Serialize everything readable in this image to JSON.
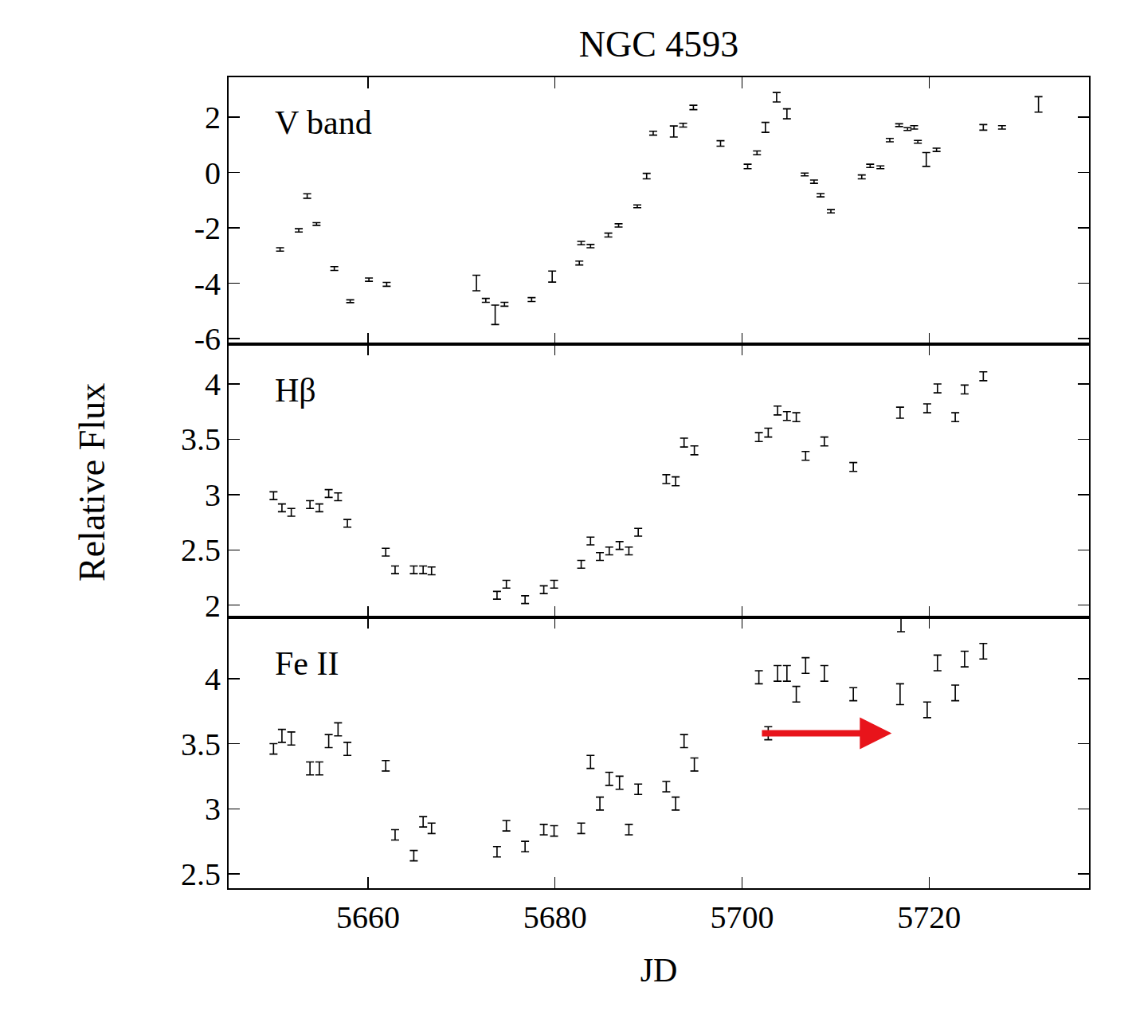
{
  "figure": {
    "title": "NGC 4593",
    "x_label": "JD",
    "y_label": "Relative Flux"
  },
  "chart_data": [
    {
      "type": "scatter",
      "label": "V band",
      "tick_labels": "y",
      "grid": false,
      "xlim": [
        5645.1,
        5737.1
      ],
      "xticks": [
        5660,
        5680,
        5700,
        5720
      ],
      "ylim": [
        -6.2,
        3.44
      ],
      "yticks": [
        -6,
        -4,
        -2,
        0,
        2
      ],
      "series": [
        {
          "name": "V band",
          "color": "#000000",
          "marker": "none",
          "x": [
            5650.6,
            5652.6,
            5653.5,
            5654.5,
            5656.4,
            5658.1,
            5660.1,
            5662.0,
            5671.6,
            5672.6,
            5673.6,
            5674.6,
            5677.5,
            5679.7,
            5682.6,
            5682.8,
            5683.8,
            5685.7,
            5686.8,
            5688.8,
            5689.8,
            5690.5,
            5692.7,
            5693.7,
            5694.8,
            5697.7,
            5700.6,
            5701.6,
            5702.5,
            5703.7,
            5704.8,
            5706.7,
            5707.7,
            5708.4,
            5709.5,
            5712.8,
            5713.7,
            5714.8,
            5715.8,
            5716.8,
            5717.7,
            5718.4,
            5718.8,
            5719.7,
            5720.8,
            5725.8,
            5727.8,
            5731.7
          ],
          "values": [
            -2.78,
            -2.09,
            -0.85,
            -1.86,
            -3.47,
            -4.65,
            -3.87,
            -4.04,
            -3.99,
            -4.62,
            -5.14,
            -4.76,
            -4.59,
            -3.76,
            -3.27,
            -2.55,
            -2.66,
            -2.26,
            -1.91,
            -1.22,
            -0.13,
            1.42,
            1.48,
            1.71,
            2.35,
            1.05,
            0.22,
            0.71,
            1.63,
            2.72,
            2.12,
            -0.07,
            -0.33,
            -0.82,
            -1.4,
            -0.16,
            0.24,
            0.19,
            1.17,
            1.71,
            1.57,
            1.63,
            1.11,
            0.47,
            0.82,
            1.63,
            1.63,
            2.46
          ],
          "errors": [
            0.06,
            0.06,
            0.08,
            0.05,
            0.07,
            0.05,
            0.06,
            0.07,
            0.28,
            0.07,
            0.35,
            0.07,
            0.07,
            0.2,
            0.07,
            0.06,
            0.06,
            0.07,
            0.06,
            0.05,
            0.1,
            0.07,
            0.2,
            0.07,
            0.08,
            0.1,
            0.08,
            0.07,
            0.18,
            0.17,
            0.18,
            0.05,
            0.06,
            0.06,
            0.06,
            0.07,
            0.06,
            0.05,
            0.06,
            0.05,
            0.05,
            0.06,
            0.05,
            0.25,
            0.06,
            0.1,
            0.06,
            0.28
          ]
        }
      ]
    },
    {
      "type": "scatter",
      "label": "Hβ",
      "tick_labels": "y",
      "grid": false,
      "xlim": [
        5645.1,
        5737.1
      ],
      "xticks": [
        5660,
        5680,
        5700,
        5720
      ],
      "ylim": [
        1.89,
        4.36
      ],
      "yticks": [
        2,
        2.5,
        3,
        3.5,
        4
      ],
      "series": [
        {
          "name": "Hβ",
          "color": "#000000",
          "marker": "none",
          "x": [
            5649.9,
            5650.8,
            5651.8,
            5653.8,
            5654.8,
            5655.8,
            5656.8,
            5657.8,
            5661.9,
            5662.9,
            5664.9,
            5665.9,
            5666.8,
            5673.8,
            5674.8,
            5676.8,
            5678.8,
            5679.9,
            5682.8,
            5683.8,
            5684.8,
            5685.8,
            5686.9,
            5687.9,
            5688.9,
            5691.9,
            5692.9,
            5693.8,
            5694.9,
            5701.8,
            5702.8,
            5703.8,
            5704.8,
            5705.8,
            5706.8,
            5708.8,
            5711.9,
            5716.9,
            5719.8,
            5720.9,
            5722.8,
            5723.8,
            5725.8
          ],
          "values": [
            2.99,
            2.88,
            2.84,
            2.91,
            2.88,
            3.01,
            2.98,
            2.74,
            2.48,
            2.32,
            2.32,
            2.32,
            2.31,
            2.09,
            2.19,
            2.05,
            2.14,
            2.19,
            2.37,
            2.58,
            2.44,
            2.49,
            2.54,
            2.49,
            2.66,
            3.14,
            3.12,
            3.47,
            3.4,
            3.52,
            3.56,
            3.76,
            3.71,
            3.7,
            3.35,
            3.48,
            3.25,
            3.74,
            3.78,
            3.96,
            3.7,
            3.95,
            4.07
          ],
          "errors": [
            0.035,
            0.035,
            0.035,
            0.035,
            0.035,
            0.035,
            0.035,
            0.035,
            0.035,
            0.035,
            0.035,
            0.035,
            0.035,
            0.035,
            0.035,
            0.035,
            0.035,
            0.035,
            0.035,
            0.035,
            0.035,
            0.035,
            0.035,
            0.035,
            0.035,
            0.04,
            0.04,
            0.04,
            0.04,
            0.04,
            0.04,
            0.04,
            0.04,
            0.04,
            0.04,
            0.04,
            0.04,
            0.05,
            0.04,
            0.04,
            0.04,
            0.04,
            0.04
          ]
        }
      ]
    },
    {
      "type": "scatter",
      "label": "Fe II",
      "tick_labels": true,
      "grid": false,
      "xlim": [
        5645.1,
        5737.1
      ],
      "xticks": [
        5660,
        5680,
        5700,
        5720
      ],
      "ylim": [
        2.39,
        4.47
      ],
      "yticks": [
        2.5,
        3,
        3.5,
        4
      ],
      "annotations": [
        {
          "type": "arrow",
          "from_x": 5702,
          "x": 5716,
          "y": 3.58,
          "color": "#e8141b"
        }
      ],
      "series": [
        {
          "name": "Fe II",
          "color": "#000000",
          "marker": "none",
          "x": [
            5649.9,
            5650.8,
            5651.8,
            5653.8,
            5654.8,
            5655.8,
            5656.8,
            5657.8,
            5661.9,
            5662.9,
            5664.9,
            5665.9,
            5666.8,
            5673.8,
            5674.8,
            5676.8,
            5678.8,
            5679.9,
            5682.8,
            5683.8,
            5684.8,
            5685.8,
            5686.9,
            5687.9,
            5688.9,
            5691.9,
            5692.9,
            5693.8,
            5694.9,
            5701.8,
            5702.8,
            5703.8,
            5704.8,
            5705.8,
            5706.8,
            5708.8,
            5711.9,
            5716.9,
            5717.0,
            5719.8,
            5720.9,
            5722.8,
            5723.8,
            5725.8
          ],
          "values": [
            3.46,
            3.56,
            3.54,
            3.31,
            3.31,
            3.52,
            3.61,
            3.46,
            3.33,
            2.8,
            2.64,
            2.9,
            2.85,
            2.67,
            2.87,
            2.71,
            2.84,
            2.83,
            2.85,
            3.36,
            3.04,
            3.23,
            3.2,
            2.84,
            3.15,
            3.17,
            3.04,
            3.52,
            3.34,
            4.01,
            3.58,
            4.04,
            4.04,
            3.88,
            4.1,
            4.04,
            3.88,
            3.88,
            4.44,
            3.76,
            4.12,
            3.89,
            4.15,
            4.21
          ],
          "errors": [
            0.04,
            0.05,
            0.05,
            0.05,
            0.05,
            0.05,
            0.05,
            0.05,
            0.04,
            0.04,
            0.04,
            0.04,
            0.04,
            0.04,
            0.04,
            0.04,
            0.04,
            0.04,
            0.04,
            0.05,
            0.05,
            0.05,
            0.05,
            0.04,
            0.04,
            0.04,
            0.05,
            0.05,
            0.05,
            0.05,
            0.05,
            0.06,
            0.06,
            0.06,
            0.06,
            0.06,
            0.05,
            0.08,
            0.08,
            0.06,
            0.06,
            0.06,
            0.06,
            0.06
          ]
        }
      ]
    }
  ]
}
